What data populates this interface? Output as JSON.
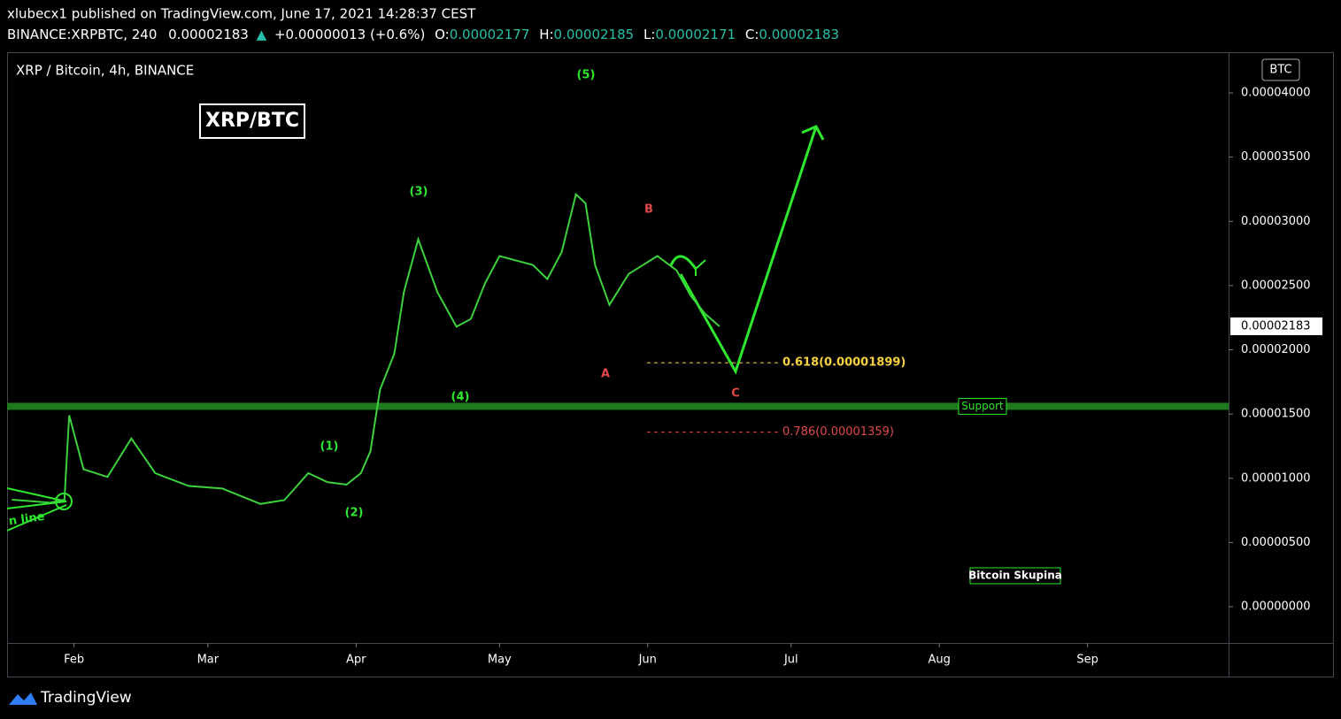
{
  "header": {
    "publisher": "xlubecx1 published on TradingView.com, June 17, 2021 14:28:37 CEST",
    "symbol": "BINANCE:XRPBTC, 240",
    "last": "0.00002183",
    "change": "+0.00000013 (+0.6%)",
    "o_label": "O:",
    "o": "0.00002177",
    "h_label": "H:",
    "h": "0.00002185",
    "l_label": "L:",
    "l": "0.00002171",
    "c_label": "C:",
    "c": "0.00002183"
  },
  "chart_data": {
    "type": "line",
    "title": "XRP / Bitcoin, 4h, BINANCE",
    "currency": "BTC",
    "x": [
      18,
      26,
      29,
      30,
      31.5,
      33,
      38,
      43,
      48,
      55,
      62,
      70,
      75,
      80,
      84,
      88,
      91,
      93,
      95,
      98,
      100,
      103,
      107,
      111,
      114,
      117,
      120,
      124,
      127,
      130,
      133,
      136,
      138,
      140,
      143,
      147,
      150,
      153,
      157,
      160,
      163,
      166
    ],
    "series": [
      {
        "name": "XRPBTC",
        "color": "#3dd13d",
        "values": [
          8.33e-06,
          8.1e-06,
          8.33e-06,
          1.49e-05,
          1.28e-05,
          1.07e-05,
          1.01e-05,
          1.31e-05,
          1.04e-05,
          9.4e-06,
          9.2e-06,
          8e-06,
          8.3e-06,
          1.04e-05,
          9.7e-06,
          9.5e-06,
          1.04e-05,
          1.21e-05,
          1.69e-05,
          1.97e-05,
          2.45e-05,
          2.86e-05,
          2.45e-05,
          2.18e-05,
          2.24e-05,
          2.52e-05,
          2.73e-05,
          2.69e-05,
          2.66e-05,
          2.55e-05,
          2.76e-05,
          3.21e-05,
          3.14e-05,
          2.66e-05,
          2.35e-05,
          2.59e-05,
          2.66e-05,
          2.73e-05,
          2.62e-05,
          2.42e-05,
          2.28e-05,
          2.183e-05
        ]
      }
    ],
    "xlim": [
      17,
      272.5
    ],
    "xticks": [
      {
        "value": 31,
        "label": "Feb"
      },
      {
        "value": 59,
        "label": "Mar"
      },
      {
        "value": 90,
        "label": "Apr"
      },
      {
        "value": 120,
        "label": "May"
      },
      {
        "value": 151,
        "label": "Jun"
      },
      {
        "value": 181,
        "label": "Jul"
      },
      {
        "value": 212,
        "label": "Aug"
      },
      {
        "value": 243,
        "label": "Sep"
      }
    ],
    "ylim": [
      -2.82e-06,
      4.31e-05
    ],
    "yticks": [
      {
        "value": 0,
        "label": "0.00000000"
      },
      {
        "value": 5e-06,
        "label": "0.00000500"
      },
      {
        "value": 1e-05,
        "label": "0.00001000"
      },
      {
        "value": 1.5e-05,
        "label": "0.00001500"
      },
      {
        "value": 2e-05,
        "label": "0.00002000"
      },
      {
        "value": 2.5e-05,
        "label": "0.00002500"
      },
      {
        "value": 3e-05,
        "label": "0.00003000"
      },
      {
        "value": 3.5e-05,
        "label": "0.00003500"
      },
      {
        "value": 4e-05,
        "label": "0.00004000"
      }
    ],
    "last_price": {
      "value": 2.183e-05,
      "label": "0.00002183"
    },
    "fib_levels": [
      {
        "label": "0.618(0.00001899)",
        "value": 1.899e-05,
        "color": "#f5d142"
      },
      {
        "label": "0.786(0.00001359)",
        "value": 1.359e-05,
        "color": "#e04848"
      }
    ],
    "support": {
      "label": "Support",
      "value": 1.56e-05
    },
    "wave_labels": [
      "(1)",
      "(2)",
      "(3)",
      "(4)",
      "(5)",
      "A",
      "B",
      "C"
    ],
    "watermark": "XRP/BTC",
    "trendline_label": "n line",
    "group_label": "Bitcoin Skupina"
  },
  "footer": {
    "brand": "TradingView"
  }
}
